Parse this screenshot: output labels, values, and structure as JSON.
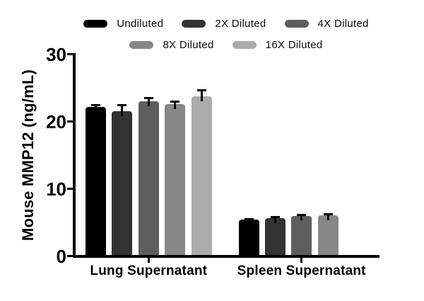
{
  "chart_data": {
    "type": "bar",
    "title": "",
    "ylabel": "Mouse MMP12 (ng/mL)",
    "xlabel": "",
    "ylim": [
      0,
      30
    ],
    "yticks": [
      0,
      10,
      20,
      30
    ],
    "grid": false,
    "legend_position": "top",
    "error_bars": "sd_upper_only",
    "categories": [
      "Lung Supernatant",
      "Spleen Supernatant"
    ],
    "series": [
      {
        "name": "Undiluted",
        "color": "#000000",
        "values": [
          22.2,
          5.4
        ],
        "errors": [
          0.2,
          0.1
        ]
      },
      {
        "name": "2X Diluted",
        "color": "#333333",
        "values": [
          21.5,
          5.6
        ],
        "errors": [
          0.9,
          0.15
        ]
      },
      {
        "name": "4X Diluted",
        "color": "#5e5e5e",
        "values": [
          23.0,
          6.0
        ],
        "errors": [
          0.5,
          0.15
        ]
      },
      {
        "name": "8X Diluted",
        "color": "#878787",
        "values": [
          22.6,
          6.1
        ],
        "errors": [
          0.3,
          0.15
        ]
      },
      {
        "name": "16X Diluted",
        "color": "#ababab",
        "values": [
          23.7,
          null
        ],
        "errors": [
          0.9,
          null
        ]
      }
    ]
  }
}
